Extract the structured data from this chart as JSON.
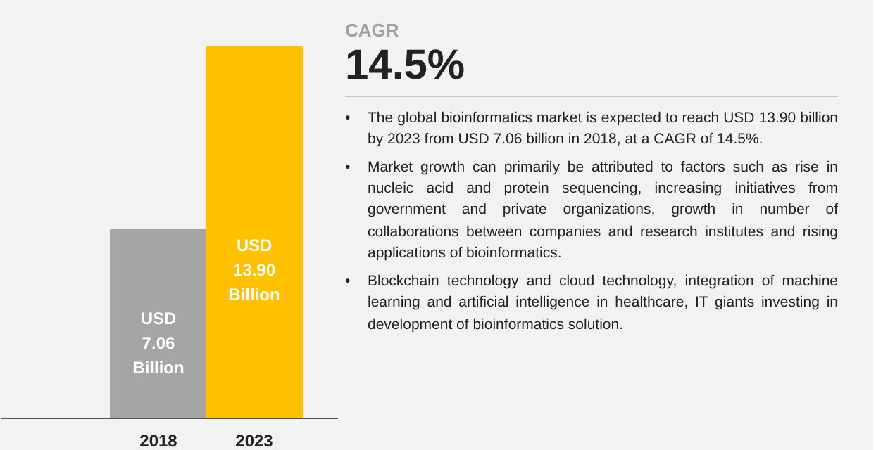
{
  "chart_data": {
    "type": "bar",
    "categories": [
      "2018",
      "2023"
    ],
    "values": [
      7.06,
      13.9
    ],
    "colors": [
      "#a5a5a5",
      "#ffc000"
    ],
    "value_labels": [
      "USD\n7.06\nBillion",
      "USD\n13.90\nBillion"
    ],
    "grid": false,
    "annotations": [
      "CAGR",
      "14.5%",
      "•\tThe global bioinformatics market is expected to reach USD 13.90 billion by 2023 from USD 7.06 billion in 2018, at a CAGR of 14.5%.",
      "•\tMarket growth can primarily be attributed to factors such as rise in nucleic acid and protein sequencing, increasing initiatives from government and private organizations, growth in number of collaborations between companies and research institutes and rising applications of bioinformatics.",
      "•\tBlockchain technology and cloud technology, integration of machine learning and artificial intelligence in healthcare, IT giants investing in development of bioinformatics solution."
    ]
  }
}
